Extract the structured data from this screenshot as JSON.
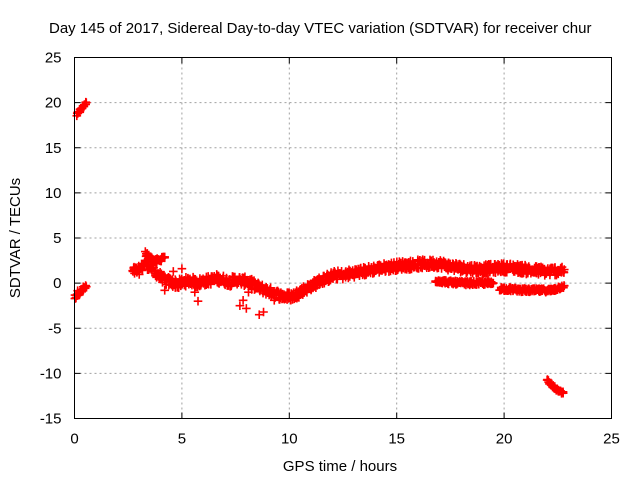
{
  "chart_data": {
    "type": "scatter",
    "title": "Day 145 of 2017, Sidereal Day-to-day VTEC variation (SDTVAR) for receiver chur",
    "xlabel": "GPS time / hours",
    "ylabel": "SDTVAR / TECUs",
    "xlim": [
      0,
      25
    ],
    "ylim": [
      -15,
      25
    ],
    "xticks": [
      0,
      5,
      10,
      15,
      20,
      25
    ],
    "yticks": [
      -15,
      -10,
      -5,
      0,
      5,
      10,
      15,
      20,
      25
    ],
    "xtick_labels": [
      "0",
      "5",
      "10",
      "15",
      "20",
      "25"
    ],
    "ytick_labels": [
      "-15",
      "-10",
      "-5",
      "0",
      "5",
      "10",
      "15",
      "20",
      "25"
    ],
    "grid": true,
    "marker": "+",
    "series": [
      {
        "name": "SDTVAR",
        "color": "#ff0000",
        "segments": [
          {
            "x": [
              0.1,
              0.25,
              0.4,
              0.55
            ],
            "y": [
              18.6,
              19.1,
              19.6,
              20.0
            ],
            "spread": 0.3
          },
          {
            "x": [
              0.0,
              0.15,
              0.3,
              0.45,
              0.55
            ],
            "y": [
              -1.6,
              -1.1,
              -0.9,
              -0.6,
              -0.4
            ],
            "spread": 0.6
          },
          {
            "x": [
              2.7,
              3.0,
              3.3,
              3.6,
              3.9,
              4.2,
              4.5,
              4.8,
              5.1,
              5.4,
              5.7,
              6.0,
              6.3,
              6.6,
              6.9,
              7.2,
              7.5,
              7.8,
              8.1,
              8.4,
              8.7,
              9.0,
              9.3,
              9.6,
              9.9,
              10.2,
              10.5,
              10.8,
              11.1,
              11.4,
              11.7,
              12.0,
              12.3,
              12.6,
              12.9,
              13.2,
              13.5,
              13.8,
              14.1,
              14.4,
              14.7,
              15.0,
              15.3,
              15.6,
              15.9,
              16.2,
              16.5,
              16.8,
              17.1,
              17.4,
              17.7,
              18.0,
              18.3,
              18.6,
              18.9,
              19.2,
              19.5,
              19.8,
              20.1,
              20.4,
              20.7,
              21.0,
              21.3,
              21.6,
              21.9,
              22.2,
              22.5,
              22.8
            ],
            "y": [
              1.3,
              1.4,
              2.2,
              1.6,
              0.9,
              0.3,
              0.1,
              -0.1,
              0.1,
              0.3,
              0.0,
              0.2,
              0.3,
              0.5,
              0.4,
              0.1,
              0.4,
              0.2,
              0.2,
              -0.3,
              -0.6,
              -0.9,
              -1.1,
              -1.4,
              -1.5,
              -1.4,
              -1.0,
              -0.6,
              -0.2,
              0.2,
              0.5,
              0.8,
              0.9,
              0.9,
              1.1,
              1.2,
              1.3,
              1.5,
              1.6,
              1.7,
              1.8,
              1.9,
              2.0,
              2.0,
              2.1,
              2.1,
              2.1,
              2.2,
              2.1,
              1.9,
              1.8,
              1.7,
              1.6,
              1.6,
              1.5,
              1.6,
              1.6,
              1.7,
              1.7,
              1.7,
              1.6,
              1.5,
              1.4,
              1.4,
              1.3,
              1.3,
              1.4,
              1.5
            ],
            "spread": 1.0
          },
          {
            "x": [
              3.3,
              3.6,
              3.9,
              4.2
            ],
            "y": [
              3.2,
              2.6,
              2.4,
              2.9
            ],
            "spread": 0.6
          },
          {
            "x": [
              16.8,
              17.4,
              18.0,
              18.6,
              19.2,
              19.5
            ],
            "y": [
              0.3,
              0.1,
              0.0,
              0.0,
              0.0,
              0.0
            ],
            "spread": 0.4
          },
          {
            "x": [
              19.8,
              20.4,
              21.0,
              21.6,
              22.2,
              22.8
            ],
            "y": [
              -0.6,
              -0.7,
              -0.8,
              -0.8,
              -0.8,
              -0.3
            ],
            "spread": 0.4
          },
          {
            "x": [
              22.0,
              22.25,
              22.5,
              22.75
            ],
            "y": [
              -10.8,
              -11.4,
              -11.9,
              -12.2
            ],
            "spread": 0.3
          }
        ],
        "outliers": {
          "x": [
            4.6,
            4.85,
            5.0,
            5.6,
            5.75,
            7.7,
            7.85,
            8.0,
            8.1,
            8.25,
            8.6,
            8.8,
            9.3,
            4.2
          ],
          "y": [
            1.3,
            -0.5,
            1.6,
            -1.0,
            -2.0,
            -2.5,
            -1.9,
            -2.8,
            -1.0,
            -0.7,
            -3.5,
            -3.2,
            -1.9,
            -0.8
          ]
        }
      }
    ]
  }
}
